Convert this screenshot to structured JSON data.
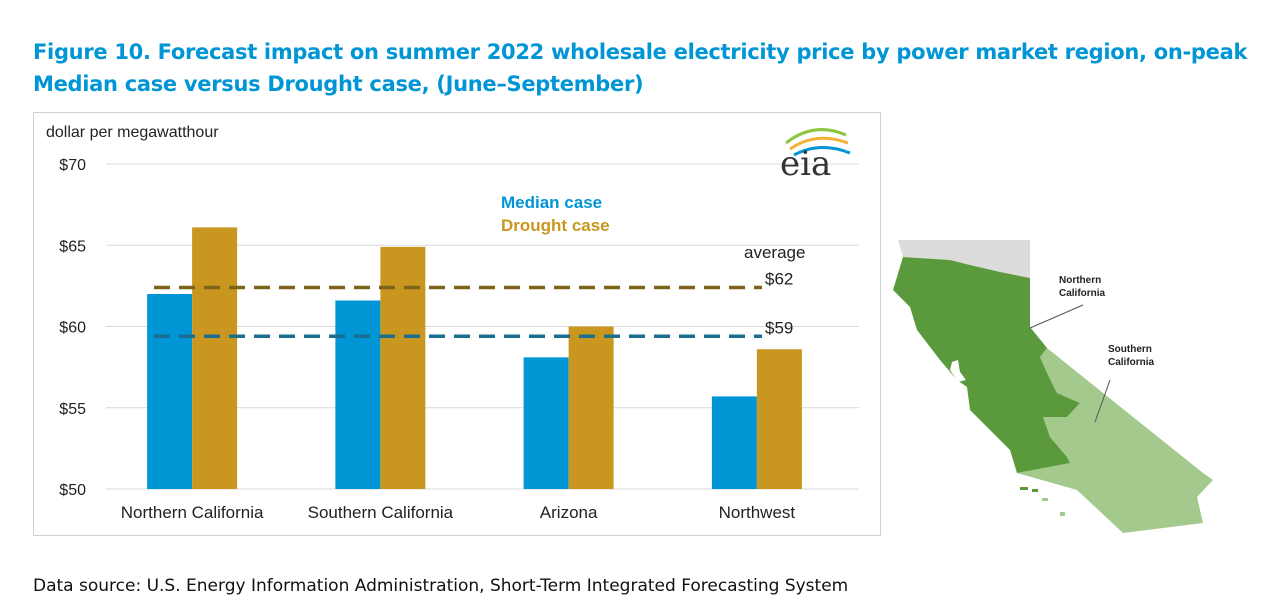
{
  "title": "Figure 10. Forecast impact on summer 2022 wholesale electricity price by power market region, on-peak Median case versus Drought case, (June–September)",
  "source": "Data source: U.S. Energy Information Administration, Short-Term Integrated Forecasting System",
  "logo_text": "eia",
  "chart_data": {
    "type": "bar",
    "ylabel": "dollar per megawatthour",
    "ylim": [
      50,
      70
    ],
    "yticks": [
      "$50",
      "$55",
      "$60",
      "$65",
      "$70"
    ],
    "ytick_values": [
      50,
      55,
      60,
      65,
      70
    ],
    "grid": true,
    "legend_placement": "top-center",
    "categories": [
      "Northern California",
      "Southern California",
      "Arizona",
      "Northwest"
    ],
    "series": [
      {
        "name": "Median case",
        "color": "#0096d6",
        "values": [
          62.0,
          61.6,
          58.1,
          55.7
        ]
      },
      {
        "name": "Drought case",
        "color": "#c9961f",
        "values": [
          66.1,
          64.9,
          60.0,
          58.6
        ]
      }
    ],
    "averages": {
      "label": "average",
      "lines": [
        {
          "series": "Drought case",
          "value": 62.4,
          "label": "$62",
          "color": "#7d6418"
        },
        {
          "series": "Median case",
          "value": 59.4,
          "label": "$59",
          "color": "#1a6e8e"
        }
      ]
    }
  },
  "map": {
    "regions": [
      {
        "label": "Northern California",
        "color": "#5b9a3c"
      },
      {
        "label": "Southern California",
        "color": "#a3c98d"
      }
    ],
    "outside_color": "#dcdcdc"
  }
}
